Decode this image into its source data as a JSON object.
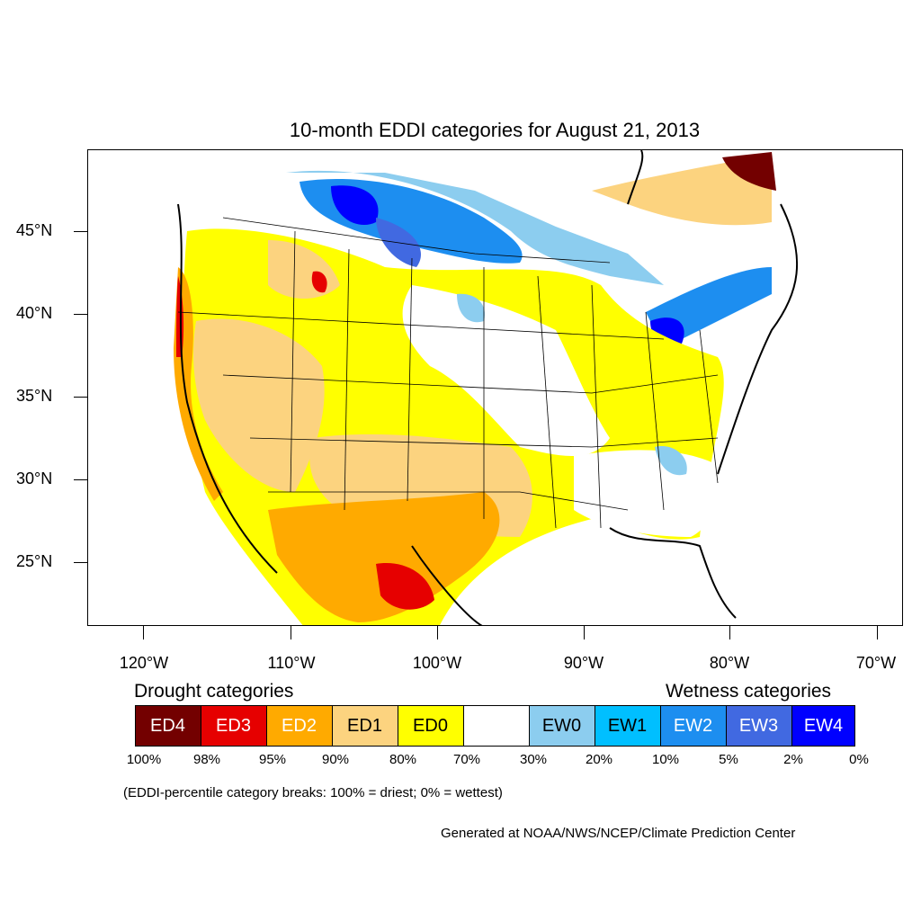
{
  "title": "10-month EDDI categories for August 21, 2013",
  "lat_labels": [
    "45°N",
    "40°N",
    "35°N",
    "30°N",
    "25°N"
  ],
  "lon_labels": [
    "120°W",
    "110°W",
    "100°W",
    "90°W",
    "80°W",
    "70°W"
  ],
  "legend": {
    "drought_heading": "Drought categories",
    "wetness_heading": "Wetness categories",
    "categories": [
      {
        "label": "ED4",
        "color": "#730000"
      },
      {
        "label": "ED3",
        "color": "#e60000"
      },
      {
        "label": "ED2",
        "color": "#ffaa00"
      },
      {
        "label": "ED1",
        "color": "#fcd37f"
      },
      {
        "label": "ED0",
        "color": "#ffff00"
      },
      {
        "label": "",
        "color": "#ffffff"
      },
      {
        "label": "EW0",
        "color": "#8ccdef"
      },
      {
        "label": "EW1",
        "color": "#00bfff"
      },
      {
        "label": "EW2",
        "color": "#1d8ef0"
      },
      {
        "label": "EW3",
        "color": "#4169e1"
      },
      {
        "label": "EW4",
        "color": "#0000ff"
      }
    ],
    "percent_breaks": [
      "100%",
      "98%",
      "95%",
      "90%",
      "80%",
      "70%",
      "30%",
      "20%",
      "10%",
      "5%",
      "2%",
      "0%"
    ],
    "note": "(EDDI-percentile category breaks: 100% = driest; 0% = wettest)"
  },
  "credit": "Generated at NOAA/NWS/NCEP/Climate Prediction Center"
}
